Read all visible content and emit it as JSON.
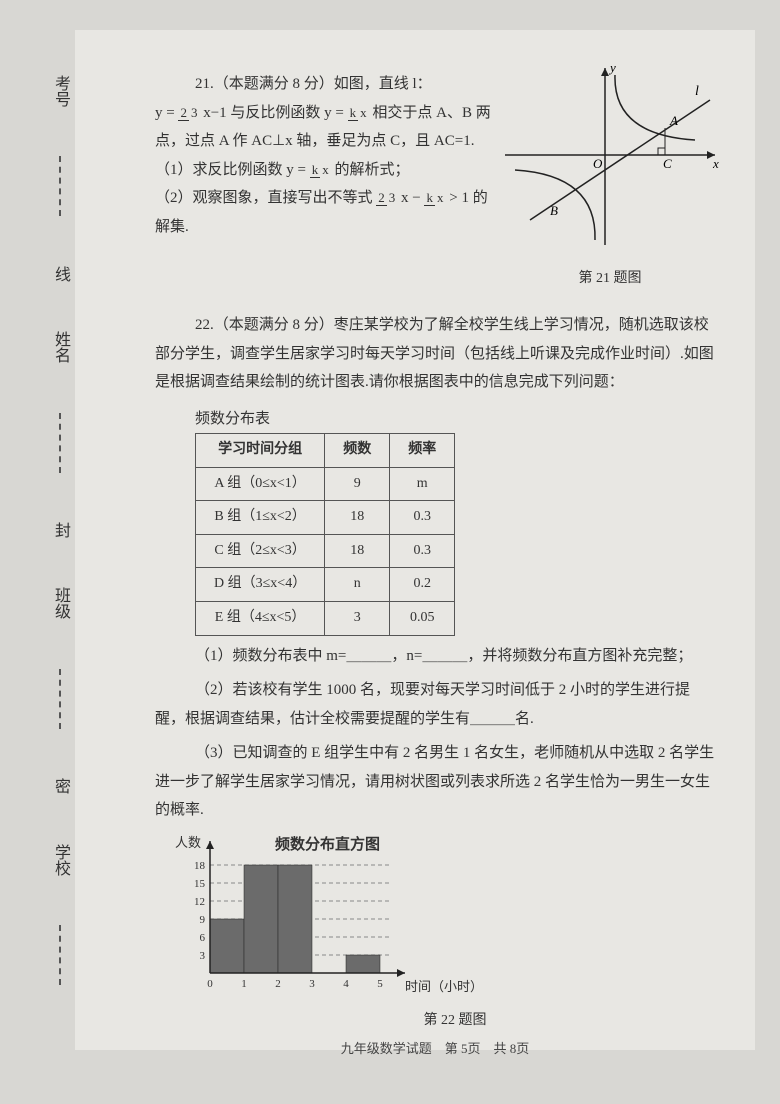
{
  "margin": {
    "items": [
      "考号",
      "姓名",
      "班级",
      "学校"
    ],
    "marks": [
      "线",
      "封",
      "密"
    ]
  },
  "q21": {
    "header": "21.（本题满分 8 分）如图，直线 l：",
    "line1a": "y = ",
    "frac1n": "2",
    "frac1d": "3",
    "line1b": "x−1 与反比例函数 y = ",
    "frac2n": "k",
    "frac2d": "x",
    "line1c": " 相交于点 A、B 两",
    "line2": "点，过点 A 作 AC⊥x 轴，垂足为点 C，且 AC=1.",
    "sub1a": "（1）求反比例函数 y = ",
    "sub1b": " 的解析式；",
    "sub2a": "（2）观察图象，直接写出不等式 ",
    "sub2b": "x − ",
    "sub2c": " > 1 的",
    "sub2d": "解集.",
    "caption": "第 21 题图",
    "labels": {
      "y": "y",
      "x": "x",
      "l": "l",
      "O": "O",
      "A": "A",
      "B": "B",
      "C": "C"
    }
  },
  "q22": {
    "header": "22.（本题满分 8 分）枣庄某学校为了解全校学生线上学习情况，随机选取该校部分学生，调查学生居家学习时每天学习时间（包括线上听课及完成作业时间）.如图是根据调查结果绘制的统计图表.请你根据图表中的信息完成下列问题：",
    "table_title": "频数分布表",
    "cols": [
      "学习时间分组",
      "频数",
      "频率"
    ],
    "rows": [
      [
        "A 组（0≤x<1）",
        "9",
        "m"
      ],
      [
        "B 组（1≤x<2）",
        "18",
        "0.3"
      ],
      [
        "C 组（2≤x<3）",
        "18",
        "0.3"
      ],
      [
        "D 组（3≤x<4）",
        "n",
        "0.2"
      ],
      [
        "E 组（4≤x<5）",
        "3",
        "0.05"
      ]
    ],
    "sub1": "（1）频数分布表中 m=＿＿＿，n=＿＿＿，并将频数分布直方图补充完整；",
    "sub2": "（2）若该校有学生 1000 名，现要对每天学习时间低于 2 小时的学生进行提醒，根据调查结果，估计全校需要提醒的学生有＿＿＿名.",
    "sub3": "（3）已知调查的 E 组学生中有 2 名男生 1 名女生，老师随机从中选取 2 名学生进一步了解学生居家学习情况，请用树状图或列表求所选 2 名学生恰为一男生一女生的概率.",
    "hist": {
      "title": "频数分布直方图",
      "ylabel": "人数",
      "xlabel": "时间（小时）",
      "yticks": [
        3,
        6,
        9,
        12,
        15,
        18
      ],
      "xticks": [
        0,
        1,
        2,
        3,
        4,
        5
      ],
      "bars": [
        9,
        18,
        18,
        0,
        3
      ],
      "ymax": 20,
      "bar_color": "#6b6b6b",
      "grid_color": "#888",
      "axis_color": "#222"
    },
    "caption": "第 22 题图"
  },
  "footer": "九年级数学试题　第 5页　共 8页"
}
